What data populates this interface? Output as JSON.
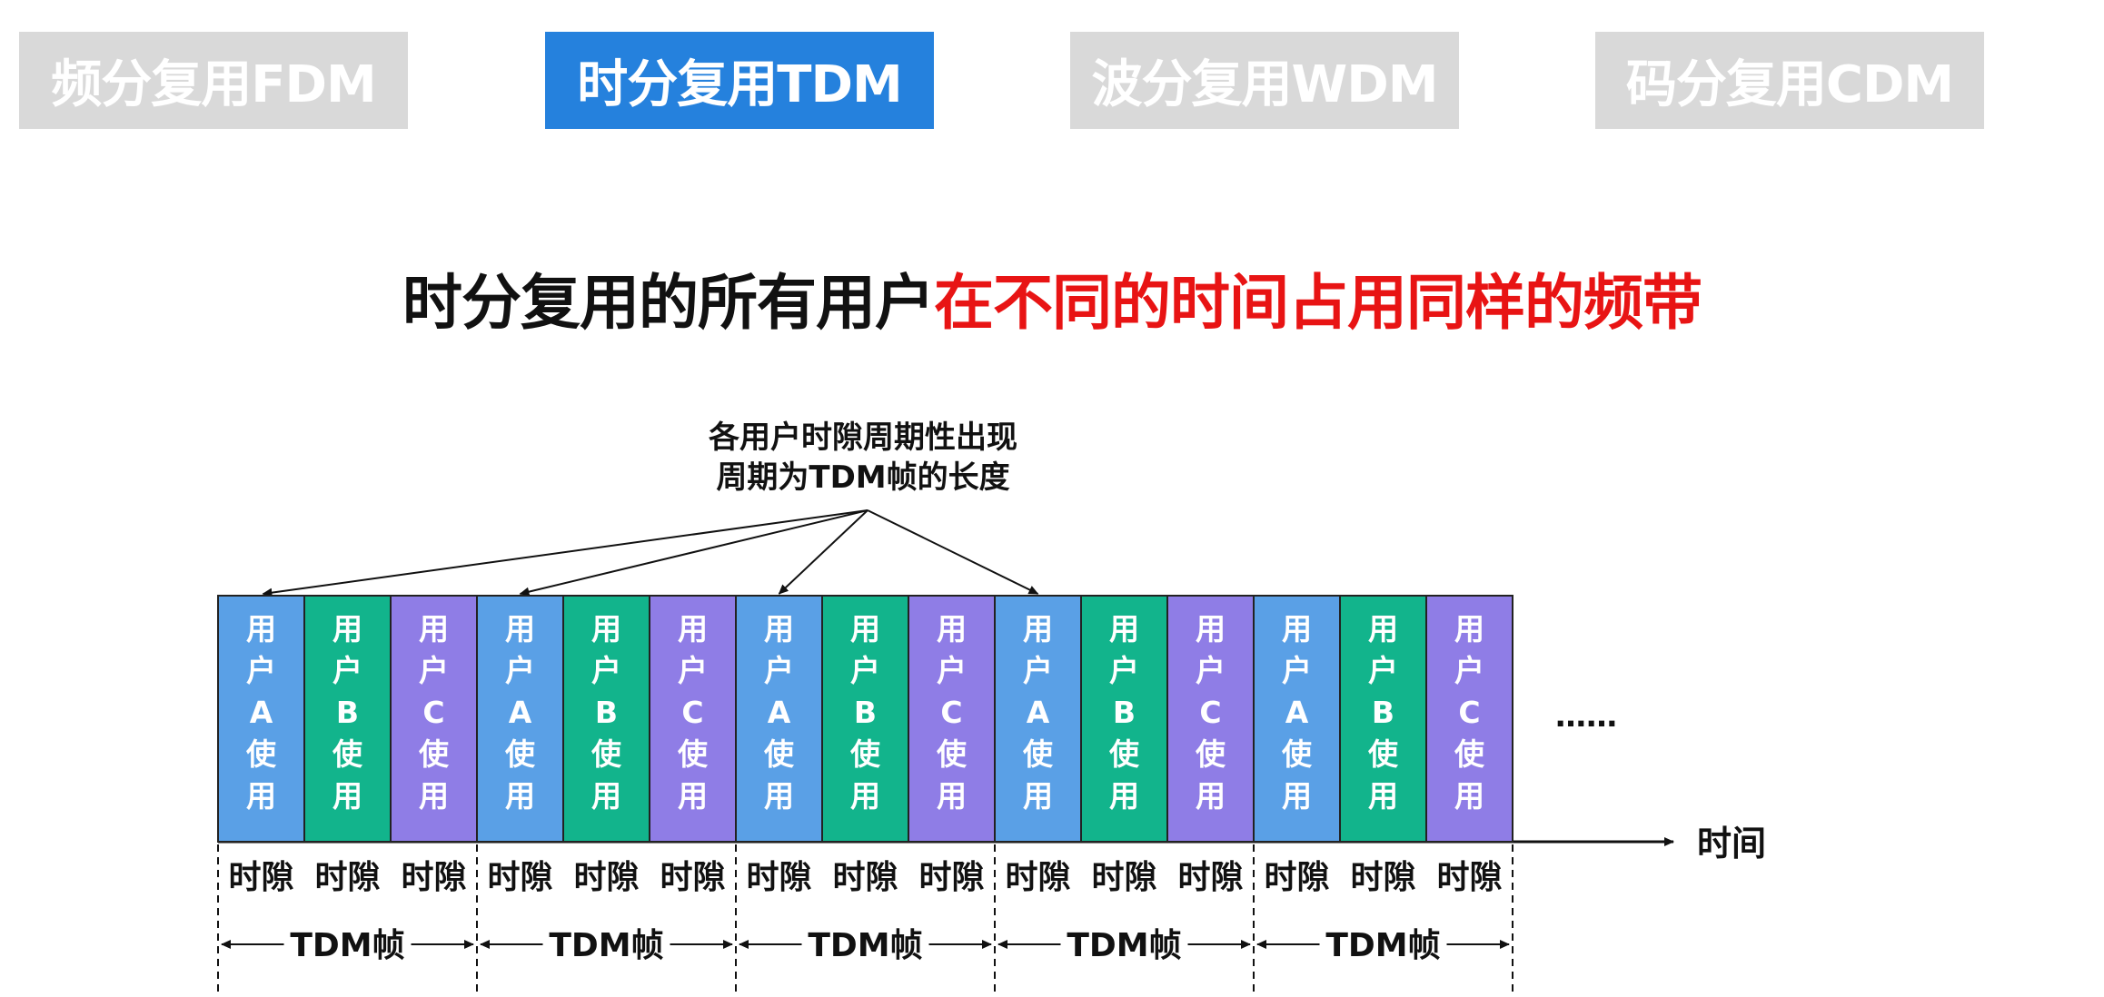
{
  "tabs": [
    {
      "label": "频分复用FDM",
      "active": false
    },
    {
      "label": "时分复用TDM",
      "active": true
    },
    {
      "label": "波分复用WDM",
      "active": false
    },
    {
      "label": "码分复用CDM",
      "active": false
    }
  ],
  "colors": {
    "tab_active": "#2581dd",
    "tab_inactive": "#d9d9d9",
    "headline_red": "#e81414",
    "user_a": "#5aa0e6",
    "user_b": "#12b48c",
    "user_c": "#8f7de6"
  },
  "headline": {
    "black_part": "时分复用的所有用户",
    "red_part": "在不同的时间占用同样的频带"
  },
  "annotation": {
    "line1": "各用户时隙周期性出现",
    "line2": "周期为TDM帧的长度"
  },
  "slot_pattern": [
    {
      "user": "A",
      "text": [
        "用",
        "户",
        "A",
        "使",
        "用"
      ],
      "color_key": "user_a"
    },
    {
      "user": "B",
      "text": [
        "用",
        "户",
        "B",
        "使",
        "用"
      ],
      "color_key": "user_b"
    },
    {
      "user": "C",
      "text": [
        "用",
        "户",
        "C",
        "使",
        "用"
      ],
      "color_key": "user_c"
    }
  ],
  "frame_count": 5,
  "slot_label": "时隙",
  "frame_label": "TDM帧",
  "ellipsis": "……",
  "time_axis_label": "时间"
}
